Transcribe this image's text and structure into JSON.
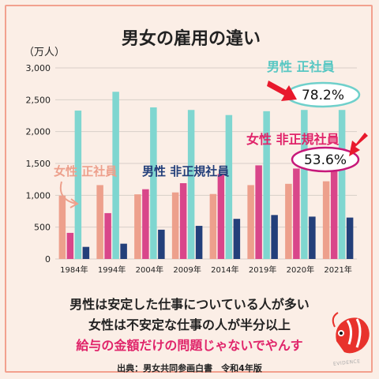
{
  "chart_data": {
    "type": "bar",
    "title": "男女の雇用の違い",
    "unit": "（万人）",
    "categories": [
      "1984年",
      "1994年",
      "2004年",
      "2009年",
      "2014年",
      "2019年",
      "2020年",
      "2021年"
    ],
    "ylim": [
      0,
      3000
    ],
    "yticks": [
      "0",
      "500",
      "1,000",
      "1,500",
      "2,000",
      "2,500",
      "3,000"
    ],
    "grid": true,
    "series": [
      {
        "name": "女性 正社員",
        "color": "#eda08c",
        "values": [
          995,
          1160,
          1015,
          1045,
          1020,
          1160,
          1180,
          1220
        ]
      },
      {
        "name": "女性 非正規社員",
        "color": "#d9468a",
        "values": [
          410,
          720,
          1095,
          1190,
          1335,
          1470,
          1420,
          1410
        ]
      },
      {
        "name": "男性 正社員",
        "color": "#7fd6d0",
        "values": [
          2330,
          2625,
          2380,
          2340,
          2260,
          2320,
          2340,
          2340
        ]
      },
      {
        "name": "男性 非正規社員",
        "color": "#233f7a",
        "values": [
          190,
          240,
          460,
          520,
          630,
          690,
          665,
          650
        ]
      }
    ],
    "annotations": [
      {
        "label": "男性 正社員",
        "value": "78.2%"
      },
      {
        "label": "女性 非正規社員",
        "value": "53.6%"
      }
    ]
  },
  "text": {
    "line1": "男性は安定した仕事についている人が多い",
    "line2": "女性は不安定な仕事の人が半分以上",
    "line3": "給与の金額だけの問題じゃないでやんす",
    "source": "出典：男女共同参画白書　令和4年版",
    "watermark": "EVIDENCE"
  }
}
